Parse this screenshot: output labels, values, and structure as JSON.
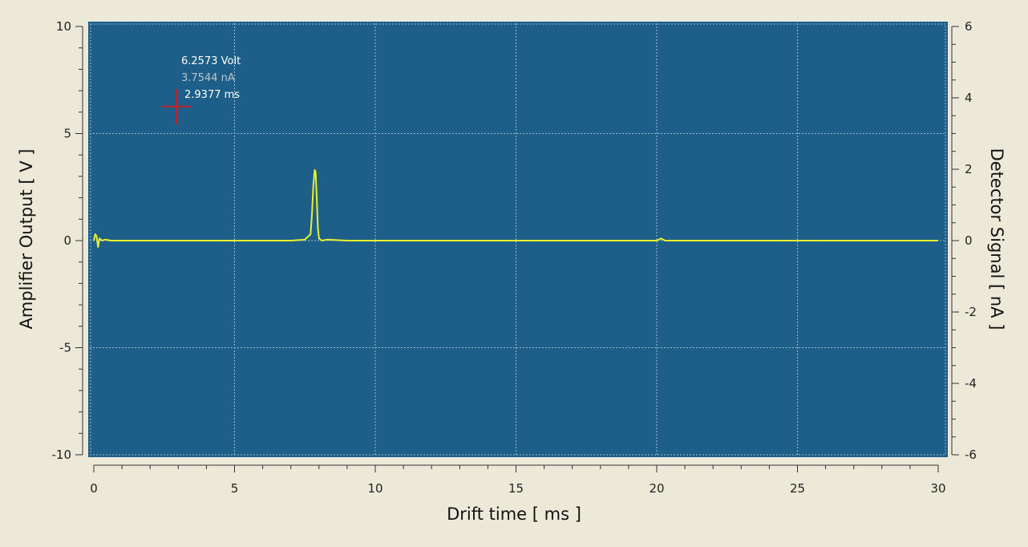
{
  "colors": {
    "background": "#ece9d8",
    "plot_background": "#1e5f8a",
    "grid": "#9fb9cc",
    "trace": "#e8f030",
    "cursor_marker": "#c0242b",
    "cursor_volt_text": "#ffffff",
    "cursor_current_text": "#b9c3cc",
    "cursor_time_text": "#ffffff",
    "axis": "#333333"
  },
  "cursor": {
    "volt_label": "6.2573 Volt",
    "current_label": "3.7544 nA",
    "time_label": "2.9377 ms",
    "marker_icon": "crosshair-icon",
    "x": 2.9377,
    "y": 6.2573
  },
  "chart_data": {
    "type": "line",
    "title": "",
    "xlabel": "Drift time [ ms ]",
    "ylabel": "Amplifier Output [ V ]",
    "y2label": "Detector Signal [ nA ]",
    "xlim": [
      0,
      30
    ],
    "ylim": [
      -10,
      10
    ],
    "y2lim": [
      -6,
      6
    ],
    "xticks": [
      0,
      5,
      10,
      15,
      20,
      25,
      30
    ],
    "yticks": [
      -10,
      -5,
      0,
      5,
      10
    ],
    "y2ticks": [
      -6,
      -4,
      -2,
      0,
      2,
      4,
      6
    ],
    "grid": true,
    "legend": "none",
    "series": [
      {
        "x": [
          0.0,
          0.05,
          0.1,
          0.15,
          0.2,
          0.25,
          0.3,
          0.4,
          0.6,
          1.0,
          2.0,
          3.0,
          4.0,
          5.0,
          6.0,
          7.0,
          7.5,
          7.7,
          7.75,
          7.8,
          7.85,
          7.88,
          7.92,
          7.96,
          8.0,
          8.1,
          8.3,
          9.0,
          10.0,
          12.0,
          15.0,
          18.0,
          20.0,
          20.15,
          20.3,
          22.0,
          25.0,
          28.0,
          30.0
        ],
        "y": [
          0.0,
          0.3,
          0.2,
          -0.3,
          0.1,
          0.05,
          0.0,
          0.05,
          0.0,
          0.0,
          0.0,
          0.0,
          0.0,
          0.0,
          0.0,
          0.0,
          0.05,
          0.3,
          1.2,
          2.6,
          3.3,
          3.2,
          2.0,
          0.6,
          0.1,
          0.0,
          0.05,
          0.0,
          0.0,
          0.0,
          0.0,
          0.0,
          0.0,
          0.1,
          0.0,
          0.0,
          0.0,
          0.0,
          0.0
        ]
      }
    ]
  }
}
